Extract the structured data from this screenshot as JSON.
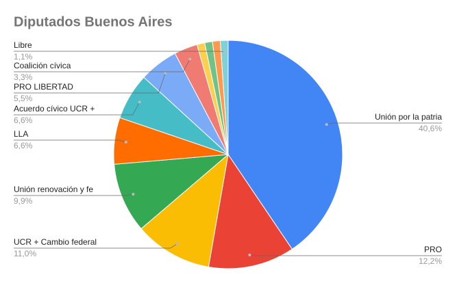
{
  "chart_data": {
    "type": "pie",
    "title": "Diputados Buenos Aires",
    "categories": [
      "Unión por la patria",
      "PRO",
      "UCR + Cambio federal",
      "Unión renovación y fe",
      "LLA",
      "Acuerdo cívico UCR +",
      "PRO LIBERTAD",
      "Coalición cívica",
      null,
      null,
      null,
      "Libre"
    ],
    "values": [
      40.6,
      12.2,
      11.0,
      9.9,
      6.6,
      6.6,
      5.5,
      3.3,
      1.1,
      1.1,
      1.1,
      1.1
    ],
    "value_labels": [
      "40,6%",
      "12,2%",
      "11,0%",
      "9,9%",
      "6,6%",
      "6,6%",
      "5,5%",
      "3,3%",
      null,
      null,
      null,
      "1,1%"
    ],
    "colors": [
      "#4285f4",
      "#ea4335",
      "#fbbc04",
      "#34a853",
      "#ff6d01",
      "#46bdc6",
      "#7baaf7",
      "#f07b72",
      "#fcd04f",
      "#71c287",
      "#ff994d",
      "#7ed1d7"
    ]
  }
}
